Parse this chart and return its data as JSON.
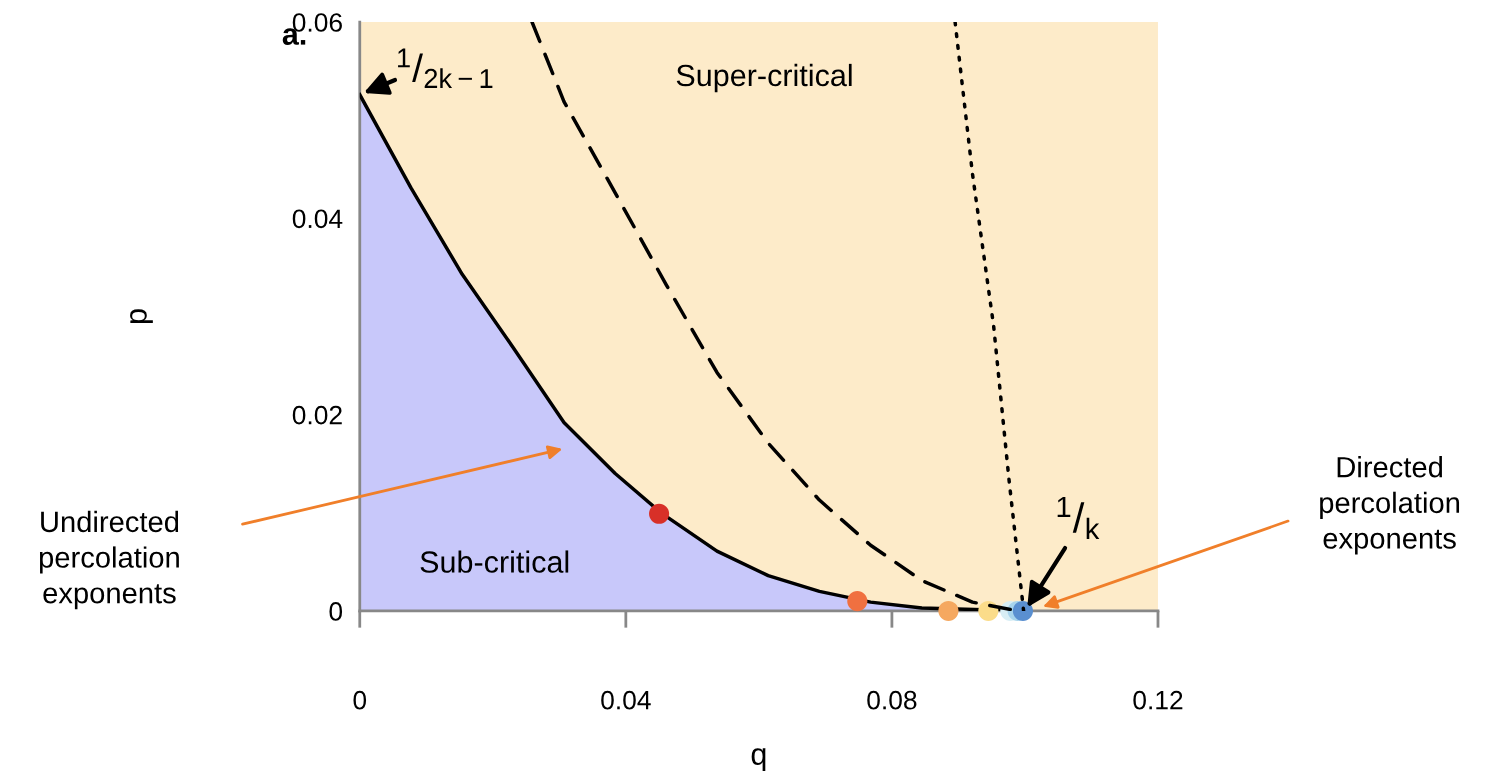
{
  "chart_data": {
    "type": "line",
    "xlabel": "q",
    "ylabel": "p",
    "xlim": [
      0,
      0.12
    ],
    "ylim": [
      0,
      0.06
    ],
    "xticks": [
      0,
      0.04,
      0.08,
      0.12
    ],
    "yticks": [
      0,
      0.02,
      0.04,
      0.06
    ],
    "grid": false,
    "bands": [
      {
        "axis": "y",
        "from": 0,
        "to": 0.06,
        "color": "#fdebc9"
      }
    ],
    "series": [
      {
        "type": "area",
        "color": "#c8c8fa",
        "line_style": "solid",
        "x": [
          0,
          0.0077,
          0.0154,
          0.023,
          0.0307,
          0.0384,
          0.0453,
          0.0537,
          0.0614,
          0.0691,
          0.0768,
          0.0845,
          0.1
        ],
        "values": [
          0.0526,
          0.0431,
          0.0343,
          0.0269,
          0.0192,
          0.014,
          0.01,
          0.0061,
          0.0036,
          0.002,
          0.0009,
          0.0003,
          0
        ]
      },
      {
        "color": "#000000",
        "line_style": "dashed",
        "x": [
          0.0259,
          0.0307,
          0.0384,
          0.0461,
          0.0537,
          0.0614,
          0.0691,
          0.0768,
          0.0845,
          0.0921,
          0.099
        ],
        "values": [
          0.06,
          0.0519,
          0.0426,
          0.0332,
          0.0243,
          0.0171,
          0.0113,
          0.0067,
          0.0031,
          0.0009,
          0
        ]
      },
      {
        "color": "#000000",
        "line_style": "dotted",
        "x": [
          0.0895,
          0.0921,
          0.0953,
          0.0976,
          0.0998
        ],
        "values": [
          0.06,
          0.0446,
          0.029,
          0.0134,
          0
        ]
      },
      {
        "type": "scatter",
        "marker": "circle",
        "x": [
          0.045,
          0.0748,
          0.0885,
          0.0945,
          0.0978,
          0.0989,
          0.0997
        ],
        "values": [
          0.0099,
          0.001,
          0,
          0,
          0,
          0,
          0
        ],
        "colors": [
          "#d83028",
          "#f07040",
          "#f5a860",
          "#fbdc8a",
          "#d8eef5",
          "#a8d4ec",
          "#5a8fd0"
        ]
      }
    ],
    "annotations": [
      "a.",
      {
        "text": "$^{1}$/$_{2k−1}$",
        "x": 0,
        "y": 0.0526
      },
      {
        "text": "$^{1}$/$_{k}$",
        "x": 0.1,
        "y": 0
      },
      "Super-critical",
      "Sub-critical",
      "Undirected\npercolation\nexponents",
      "Directed\npercolation\nexponents"
    ]
  }
}
